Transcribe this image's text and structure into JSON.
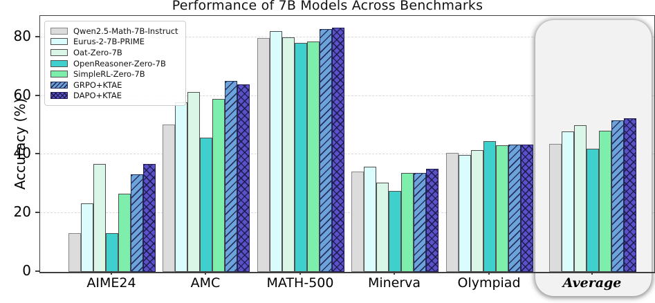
{
  "chart_data": {
    "type": "bar",
    "title": "Performance of 7B Models Across Benchmarks",
    "xlabel": "",
    "ylabel": "Accuracy (%)",
    "categories": [
      "AIME24",
      "AMC",
      "MATH-500",
      "Minerva",
      "Olympiad",
      "Average"
    ],
    "yticks": [
      0,
      20,
      40,
      60,
      80
    ],
    "ylim": [
      0,
      87.3
    ],
    "grid": "horizontal-dashed",
    "legend_position": "upper-left",
    "highlighted_category": "Average",
    "series": [
      {
        "name": "Qwen2.5-Math-7B-Instruct",
        "color": "#dcdcdc",
        "edge": "#858585",
        "hatch": "none",
        "values": [
          13.3,
          50.2,
          79.8,
          34.3,
          40.6,
          43.6
        ]
      },
      {
        "name": "Eurus-2-7B-PRIME",
        "color": "#dbfcfc",
        "edge": "#4f4f4f",
        "hatch": "none",
        "values": [
          23.3,
          57.8,
          82.2,
          35.9,
          39.8,
          47.8
        ]
      },
      {
        "name": "Oat-Zero-7B",
        "color": "#d9f6e6",
        "edge": "#4f4f4f",
        "hatch": "none",
        "values": [
          36.7,
          61.4,
          80.0,
          30.4,
          41.5,
          50.0
        ]
      },
      {
        "name": "OpenReasoner-Zero-7B",
        "color": "#3fcfcc",
        "edge": "#4f4f4f",
        "hatch": "none",
        "values": [
          13.3,
          45.8,
          78.2,
          27.6,
          44.7,
          41.9
        ]
      },
      {
        "name": "SimpleRL-Zero-7B",
        "color": "#7deeab",
        "edge": "#4f4f4f",
        "hatch": "none",
        "values": [
          26.7,
          59.0,
          78.6,
          33.7,
          43.1,
          48.2
        ]
      },
      {
        "name": "GRPO+KTAE",
        "color": "#6ba3da",
        "edge": "#252e52",
        "hatch": "/",
        "values": [
          33.3,
          65.1,
          82.8,
          33.8,
          43.4,
          51.7
        ]
      },
      {
        "name": "DAPO+KTAE",
        "color": "#5b51c9",
        "edge": "#201c50",
        "hatch": "x",
        "values": [
          36.7,
          63.9,
          83.4,
          35.2,
          43.4,
          52.5
        ]
      }
    ]
  }
}
